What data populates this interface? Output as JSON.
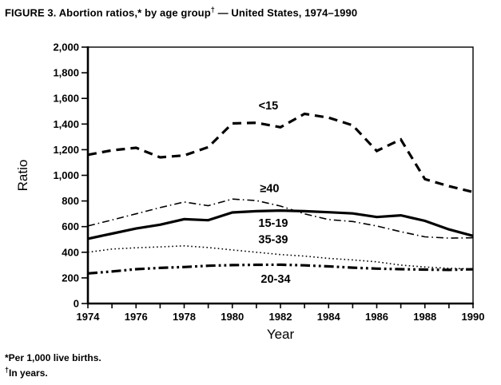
{
  "figure": {
    "title_part1": "FIGURE 3. Abortion ratios,* by age group",
    "title_sup": "†",
    "title_part2": " — United States, 1974–1990",
    "footnote1": "*Per 1,000 live births.",
    "footnote2_sup": "†",
    "footnote2_text": "In years."
  },
  "chart_data": {
    "type": "line",
    "title": "FIGURE 3. Abortion ratios, by age group — United States, 1974–1990",
    "xlabel": "Year",
    "ylabel": "Ratio",
    "xlim": [
      1974,
      1990
    ],
    "ylim": [
      0,
      2000
    ],
    "grid": false,
    "legend": "inline-labels",
    "line_color": "#000000",
    "background": "#ffffff",
    "x": [
      1974,
      1975,
      1976,
      1977,
      1978,
      1979,
      1980,
      1981,
      1982,
      1983,
      1984,
      1985,
      1986,
      1987,
      1988,
      1989,
      1990
    ],
    "x_ticks": [
      {
        "v": 1974,
        "label": "1974"
      },
      {
        "v": 1975,
        "label": ""
      },
      {
        "v": 1976,
        "label": "1976"
      },
      {
        "v": 1977,
        "label": ""
      },
      {
        "v": 1978,
        "label": "1978"
      },
      {
        "v": 1979,
        "label": ""
      },
      {
        "v": 1980,
        "label": "1980"
      },
      {
        "v": 1981,
        "label": ""
      },
      {
        "v": 1982,
        "label": "1982"
      },
      {
        "v": 1983,
        "label": ""
      },
      {
        "v": 1984,
        "label": "1984"
      },
      {
        "v": 1985,
        "label": ""
      },
      {
        "v": 1986,
        "label": "1986"
      },
      {
        "v": 1987,
        "label": ""
      },
      {
        "v": 1988,
        "label": "1988"
      },
      {
        "v": 1989,
        "label": ""
      },
      {
        "v": 1990,
        "label": "1990"
      }
    ],
    "y_ticks": [
      {
        "v": 0,
        "label": "0"
      },
      {
        "v": 200,
        "label": "200"
      },
      {
        "v": 400,
        "label": "400"
      },
      {
        "v": 600,
        "label": "600"
      },
      {
        "v": 800,
        "label": "800"
      },
      {
        "v": 1000,
        "label": "1,000"
      },
      {
        "v": 1200,
        "label": "1,200"
      },
      {
        "v": 1400,
        "label": "1,400"
      },
      {
        "v": 1600,
        "label": "1,600"
      },
      {
        "v": 1800,
        "label": "1,800"
      },
      {
        "v": 2000,
        "label": "2,000"
      }
    ],
    "series": [
      {
        "name": "<15",
        "slug": "under-15",
        "line_style": "dashed",
        "line_width": 3.2,
        "values": [
          1160,
          1195,
          1215,
          1140,
          1155,
          1220,
          1405,
          1410,
          1375,
          1480,
          1450,
          1390,
          1190,
          1280,
          970,
          915,
          870
        ]
      },
      {
        "name": "≥40",
        "slug": "40-and-over",
        "line_style": "dashdot",
        "line_width": 1.6,
        "values": [
          605,
          652,
          700,
          748,
          792,
          763,
          815,
          803,
          760,
          700,
          655,
          640,
          605,
          560,
          520,
          510,
          513
        ]
      },
      {
        "name": "15-19",
        "slug": "15-19",
        "line_style": "solid",
        "line_width": 3.2,
        "values": [
          505,
          545,
          585,
          615,
          658,
          650,
          710,
          720,
          725,
          720,
          712,
          703,
          675,
          688,
          645,
          578,
          528
        ]
      },
      {
        "name": "35-39",
        "slug": "35-39",
        "line_style": "dotted",
        "line_width": 1.6,
        "values": [
          400,
          425,
          435,
          442,
          450,
          437,
          418,
          400,
          382,
          370,
          352,
          340,
          325,
          300,
          285,
          275,
          270
        ]
      },
      {
        "name": "20-34",
        "slug": "20-34",
        "line_style": "dashdotdot",
        "line_width": 3.2,
        "values": [
          235,
          250,
          268,
          278,
          285,
          295,
          300,
          302,
          303,
          298,
          290,
          280,
          272,
          268,
          265,
          262,
          267
        ]
      }
    ],
    "series_labels": [
      {
        "text": "<15",
        "slug": "under-15",
        "x": 1981.5,
        "y": 1545
      },
      {
        "text": "≥40",
        "slug": "40-and-over",
        "x": 1981.55,
        "y": 900
      },
      {
        "text": "15-19",
        "slug": "15-19",
        "x": 1981.7,
        "y": 628
      },
      {
        "text": "35-39",
        "slug": "35-39",
        "x": 1981.7,
        "y": 502
      },
      {
        "text": "20-34",
        "slug": "20-34",
        "x": 1981.8,
        "y": 192
      }
    ]
  }
}
